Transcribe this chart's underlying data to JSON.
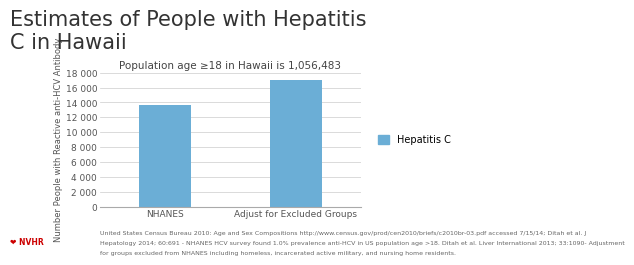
{
  "title": "Estimates of People with Hepatitis\nC in Hawaii",
  "subtitle": "Population age ≥18 in Hawaii is 1,056,483",
  "categories": [
    "NHANES",
    "Adjust for Excluded Groups"
  ],
  "values": [
    13700,
    17000
  ],
  "bar_color": "#6BAED6",
  "ylabel": "Number People with Reactive anti-HCV Antibody",
  "ylim": [
    0,
    18000
  ],
  "yticks": [
    0,
    2000,
    4000,
    6000,
    8000,
    10000,
    12000,
    14000,
    16000,
    18000
  ],
  "ytick_labels": [
    "0",
    "2 000",
    "4 000",
    "6 000",
    "8 000",
    "10 000",
    "12 000",
    "14 000",
    "16 000",
    "18 000"
  ],
  "legend_label": "Hepatitis C",
  "footnote_line1": "United States Census Bureau 2010: Age and Sex Compositions http://www.census.gov/prod/cen2010/briefs/c2010br-03.pdf accessed 7/15/14; Ditah et al. J",
  "footnote_line2": "Hepatology 2014; 60:691 - NHANES HCV survey found 1.0% prevalence anti-HCV in US population age >18. Ditah et al. Liver International 2013; 33:1090- Adjustment",
  "footnote_line3": "for groups excluded from NHANES including homeless, incarcerated active military, and nursing home residents.",
  "background_color": "#ffffff",
  "title_fontsize": 15,
  "subtitle_fontsize": 7.5,
  "ylabel_fontsize": 6,
  "tick_fontsize": 6.5,
  "footnote_fontsize": 4.5,
  "bar_width": 0.4,
  "legend_fontsize": 7
}
